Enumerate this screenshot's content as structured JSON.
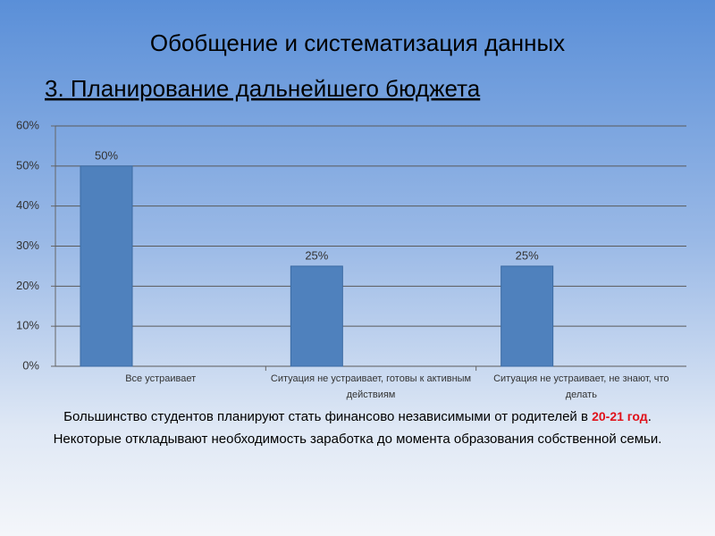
{
  "chart_data": {
    "type": "bar",
    "title": "Обобщение и систематизация данных",
    "subtitle": "3. Планирование дальнейшего бюджета",
    "categories": [
      "Все устраивает",
      "Ситуация не устраивает, готовы к активным действиям",
      "Ситуация не устраивает, не знают, что делать"
    ],
    "values": [
      50,
      25,
      25
    ],
    "value_labels": [
      "50%",
      "25%",
      "25%"
    ],
    "color": "#4f81bd",
    "ylim": [
      0,
      60
    ],
    "yticks": [
      {
        "value": 0,
        "label": "0%"
      },
      {
        "value": 10,
        "label": "10%"
      },
      {
        "value": 20,
        "label": "20%"
      },
      {
        "value": 30,
        "label": "30%"
      },
      {
        "value": 40,
        "label": "40%"
      },
      {
        "value": 50,
        "label": "50%"
      },
      {
        "value": 60,
        "label": "60%"
      }
    ],
    "grid": true,
    "caption": {
      "line1": [
        "Большинство студентов планируют стать финансово независимыми от родителей в ",
        "20-21 год",
        "."
      ],
      "line2": "Некоторые откладывают необходимость заработка до момента образования собственной семьи."
    }
  }
}
